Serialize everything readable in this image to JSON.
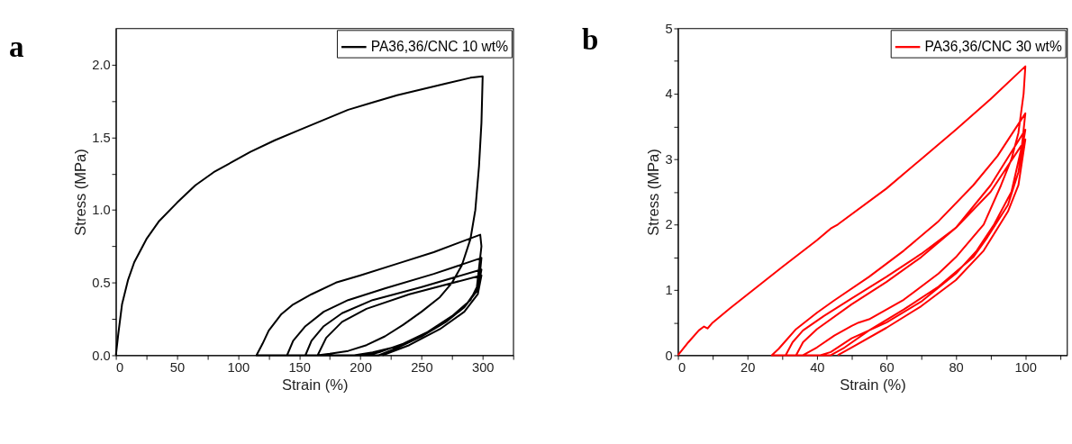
{
  "chart_data": [
    {
      "type": "line",
      "title": "a",
      "xlabel": "Strain (%)",
      "ylabel": "Stress (MPa)",
      "xlim": [
        0,
        325
      ],
      "ylim": [
        0,
        2.25
      ],
      "xticks": [
        0,
        {
          "value": 25,
          "label": null
        },
        50,
        {
          "value": 75,
          "label": null
        },
        100,
        {
          "value": 125,
          "label": null
        },
        150,
        {
          "value": 175,
          "label": null
        },
        200,
        {
          "value": 225,
          "label": null
        },
        250,
        {
          "value": 275,
          "label": null
        },
        300,
        {
          "value": 325,
          "label": null
        }
      ],
      "yticks": [
        {
          "value": 0,
          "label": "0.0"
        },
        {
          "value": 0.25,
          "label": null
        },
        0.5,
        {
          "value": 0.75,
          "label": null
        },
        {
          "value": 1,
          "label": "1.0"
        },
        {
          "value": 1.25,
          "label": null
        },
        1.5,
        {
          "value": 1.75,
          "label": null
        },
        {
          "value": 2,
          "label": "2.0"
        }
      ],
      "grid": false,
      "legend": "top right",
      "marker": "none",
      "line_style": "solid",
      "series": [
        {
          "name": "PA36,36/CNC 10 wt%",
          "color": "#000000",
          "x": [
            0,
            2,
            5,
            10,
            15,
            25,
            35,
            50,
            65,
            80,
            95,
            110,
            130,
            150,
            170,
            190,
            210,
            230,
            250,
            270,
            290,
            300,
            299,
            297,
            294,
            290,
            283,
            275,
            265,
            250,
            235,
            220,
            205,
            190,
            175,
            165,
            115,
            120,
            125,
            135,
            145,
            160,
            180,
            200,
            230,
            260,
            298,
            299,
            297,
            295,
            285,
            270,
            250,
            230,
            210,
            195,
            140,
            145,
            155,
            170,
            190,
            220,
            260,
            299,
            297,
            290,
            275,
            255,
            235,
            215,
            205,
            155,
            160,
            170,
            185,
            210,
            250,
            299,
            296,
            285,
            270,
            250,
            230,
            215,
            165,
            172,
            185,
            205,
            240,
            299,
            296,
            285,
            265,
            240,
            218
          ],
          "values": [
            0,
            0.15,
            0.35,
            0.52,
            0.64,
            0.8,
            0.92,
            1.05,
            1.17,
            1.26,
            1.33,
            1.4,
            1.48,
            1.55,
            1.62,
            1.69,
            1.74,
            1.79,
            1.83,
            1.87,
            1.91,
            1.92,
            1.6,
            1.3,
            1.0,
            0.8,
            0.62,
            0.5,
            0.4,
            0.3,
            0.21,
            0.13,
            0.07,
            0.03,
            0.01,
            0,
            0,
            0.08,
            0.17,
            0.28,
            0.35,
            0.42,
            0.5,
            0.55,
            0.63,
            0.71,
            0.83,
            0.75,
            0.6,
            0.45,
            0.33,
            0.23,
            0.13,
            0.06,
            0.02,
            0,
            0,
            0.1,
            0.2,
            0.3,
            0.38,
            0.46,
            0.56,
            0.67,
            0.5,
            0.38,
            0.27,
            0.16,
            0.08,
            0.02,
            0,
            0,
            0.1,
            0.2,
            0.29,
            0.38,
            0.47,
            0.59,
            0.45,
            0.33,
            0.23,
            0.13,
            0.05,
            0,
            0,
            0.12,
            0.23,
            0.32,
            0.42,
            0.55,
            0.42,
            0.3,
            0.18,
            0.07,
            0
          ]
        }
      ]
    },
    {
      "type": "line",
      "title": "b",
      "xlabel": "Strain (%)",
      "ylabel": "Stress (MPa)",
      "xlim": [
        0,
        112
      ],
      "ylim": [
        0,
        5
      ],
      "xticks": [
        0,
        {
          "value": 10,
          "label": null
        },
        20,
        {
          "value": 30,
          "label": null
        },
        40,
        {
          "value": 50,
          "label": null
        },
        60,
        {
          "value": 70,
          "label": null
        },
        80,
        {
          "value": 90,
          "label": null
        },
        100,
        {
          "value": 110,
          "label": null
        }
      ],
      "yticks": [
        0,
        {
          "value": 0.5,
          "label": null
        },
        1,
        {
          "value": 1.5,
          "label": null
        },
        2,
        {
          "value": 2.5,
          "label": null
        },
        3,
        {
          "value": 3.5,
          "label": null
        },
        4,
        {
          "value": 4.5,
          "label": null
        },
        5
      ],
      "grid": false,
      "legend": "top right",
      "marker": "none",
      "line_style": "solid",
      "series": [
        {
          "name": "PA36,36/CNC 30 wt%",
          "color": "#ff0000",
          "x": [
            0,
            3,
            6,
            7.5,
            8.5,
            10,
            15,
            20,
            30,
            40,
            44,
            46,
            60,
            70,
            80,
            90,
            100,
            99.5,
            98,
            96,
            93,
            88,
            80,
            75,
            65,
            55,
            52,
            50,
            45,
            40,
            36,
            27,
            29,
            31,
            34,
            40,
            45,
            55,
            65,
            75,
            85,
            92,
            100,
            99,
            96,
            91,
            86,
            80,
            70,
            60,
            50,
            44,
            41,
            31,
            33,
            36,
            42,
            50,
            60,
            70,
            80,
            90,
            100,
            98,
            95,
            89,
            85,
            75,
            65,
            55,
            48,
            44,
            34,
            36,
            40,
            50,
            60,
            70,
            80,
            90,
            100,
            98,
            95,
            88,
            80,
            70,
            60,
            50,
            46
          ],
          "values": [
            0,
            0.2,
            0.38,
            0.44,
            0.41,
            0.5,
            0.72,
            0.93,
            1.35,
            1.76,
            1.94,
            2.0,
            2.55,
            3.0,
            3.45,
            3.92,
            4.42,
            4.0,
            3.4,
            3.0,
            2.6,
            2.0,
            1.5,
            1.25,
            0.85,
            0.55,
            0.5,
            0.45,
            0.3,
            0.12,
            0,
            0,
            0.1,
            0.22,
            0.4,
            0.65,
            0.84,
            1.2,
            1.6,
            2.05,
            2.6,
            3.05,
            3.7,
            3.2,
            2.5,
            2.0,
            1.6,
            1.25,
            0.82,
            0.5,
            0.26,
            0.05,
            0,
            0,
            0.2,
            0.38,
            0.6,
            0.87,
            1.2,
            1.55,
            1.95,
            2.6,
            3.45,
            2.8,
            2.3,
            1.8,
            1.5,
            1.05,
            0.7,
            0.38,
            0.12,
            0,
            0,
            0.2,
            0.4,
            0.78,
            1.12,
            1.5,
            1.95,
            2.5,
            3.3,
            2.6,
            2.2,
            1.6,
            1.15,
            0.75,
            0.42,
            0.12,
            0
          ]
        }
      ]
    }
  ]
}
